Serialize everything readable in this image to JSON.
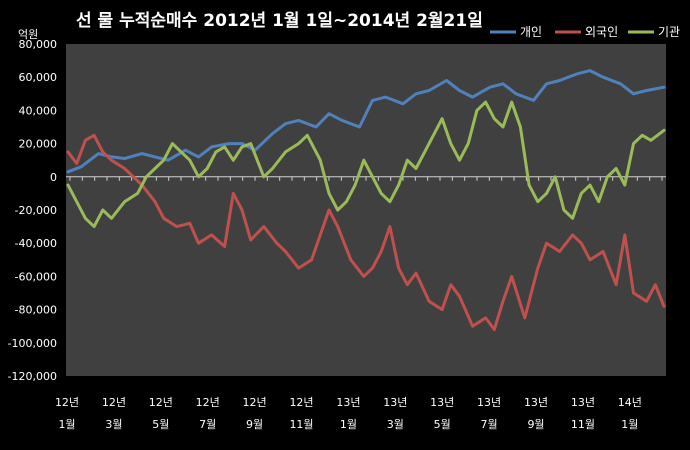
{
  "chart_data": {
    "type": "line",
    "title": "선 물 누적순매수 2012년 1월 1일~2014년 2월21일",
    "unit_label": "억원",
    "ylim": [
      -120000,
      80000
    ],
    "ytick_values": [
      80000,
      60000,
      40000,
      20000,
      0,
      -20000,
      -40000,
      -60000,
      -80000,
      -100000,
      -120000
    ],
    "ytick_labels": [
      "80,000",
      "60,000",
      "40,000",
      "20,000",
      "0",
      "-20,000",
      "-40,000",
      "-60,000",
      "-80,000",
      "-100,000",
      "-120,000"
    ],
    "x_ticks": [
      {
        "year": "12년",
        "month": "1월"
      },
      {
        "year": "12년",
        "month": "3월"
      },
      {
        "year": "12년",
        "month": "5월"
      },
      {
        "year": "12년",
        "month": "7월"
      },
      {
        "year": "12년",
        "month": "9월"
      },
      {
        "year": "12년",
        "month": "11월"
      },
      {
        "year": "13년",
        "month": "1월"
      },
      {
        "year": "13년",
        "month": "3월"
      },
      {
        "year": "13년",
        "month": "5월"
      },
      {
        "year": "13년",
        "month": "7월"
      },
      {
        "year": "13년",
        "month": "9월"
      },
      {
        "year": "13년",
        "month": "11월"
      },
      {
        "year": "14년",
        "month": "1월"
      }
    ],
    "x_domain_months": [
      0,
      13.7
    ],
    "legend_position": "top-right",
    "grid": false,
    "series": [
      {
        "name": "개인",
        "color": "#4f81bd",
        "x": [
          0,
          0.3,
          0.7,
          1.0,
          1.3,
          1.7,
          2.0,
          2.3,
          2.7,
          3.0,
          3.3,
          3.7,
          4.0,
          4.3,
          4.7,
          5.0,
          5.3,
          5.7,
          6.0,
          6.3,
          6.7,
          7.0,
          7.3,
          7.7,
          8.0,
          8.3,
          8.7,
          9.0,
          9.3,
          9.7,
          10.0,
          10.3,
          10.7,
          11.0,
          11.3,
          11.7,
          12.0,
          12.3,
          12.7,
          13.0,
          13.3,
          13.7
        ],
        "y": [
          3000,
          6000,
          14000,
          12000,
          11000,
          14000,
          12000,
          10000,
          16000,
          12000,
          18000,
          20000,
          20000,
          16000,
          26000,
          32000,
          34000,
          30000,
          38000,
          34000,
          30000,
          46000,
          48000,
          44000,
          50000,
          52000,
          58000,
          52000,
          48000,
          54000,
          56000,
          50000,
          46000,
          56000,
          58000,
          62000,
          64000,
          60000,
          56000,
          50000,
          52000,
          54000
        ]
      },
      {
        "name": "외국인",
        "color": "#c0504d",
        "x": [
          0,
          0.2,
          0.4,
          0.6,
          0.8,
          1.0,
          1.3,
          1.7,
          2.0,
          2.2,
          2.5,
          2.8,
          3.0,
          3.3,
          3.6,
          3.8,
          4.0,
          4.2,
          4.5,
          4.8,
          5.0,
          5.3,
          5.6,
          5.8,
          6.0,
          6.2,
          6.5,
          6.8,
          7.0,
          7.2,
          7.4,
          7.6,
          7.8,
          8.0,
          8.3,
          8.6,
          8.8,
          9.0,
          9.3,
          9.6,
          9.8,
          10.0,
          10.2,
          10.5,
          10.8,
          11.0,
          11.3,
          11.6,
          11.8,
          12.0,
          12.3,
          12.6,
          12.8,
          13.0,
          13.3,
          13.5,
          13.7
        ],
        "y": [
          15000,
          8000,
          22000,
          25000,
          15000,
          10000,
          5000,
          -5000,
          -15000,
          -25000,
          -30000,
          -28000,
          -40000,
          -35000,
          -42000,
          -10000,
          -20000,
          -38000,
          -30000,
          -40000,
          -45000,
          -55000,
          -50000,
          -35000,
          -20000,
          -30000,
          -50000,
          -60000,
          -55000,
          -45000,
          -30000,
          -55000,
          -65000,
          -58000,
          -75000,
          -80000,
          -65000,
          -72000,
          -90000,
          -85000,
          -92000,
          -75000,
          -60000,
          -85000,
          -55000,
          -40000,
          -45000,
          -35000,
          -40000,
          -50000,
          -45000,
          -65000,
          -35000,
          -70000,
          -75000,
          -65000,
          -78000
        ]
      },
      {
        "name": "기관",
        "color": "#9bbb59",
        "x": [
          0,
          0.2,
          0.4,
          0.6,
          0.8,
          1.0,
          1.3,
          1.6,
          1.8,
          2.0,
          2.2,
          2.4,
          2.6,
          2.8,
          3.0,
          3.2,
          3.4,
          3.6,
          3.8,
          4.0,
          4.2,
          4.5,
          4.7,
          5.0,
          5.3,
          5.5,
          5.8,
          6.0,
          6.2,
          6.4,
          6.6,
          6.8,
          7.0,
          7.2,
          7.4,
          7.6,
          7.8,
          8.0,
          8.2,
          8.4,
          8.6,
          8.8,
          9.0,
          9.2,
          9.4,
          9.6,
          9.8,
          10.0,
          10.2,
          10.4,
          10.6,
          10.8,
          11.0,
          11.2,
          11.4,
          11.6,
          11.8,
          12.0,
          12.2,
          12.4,
          12.6,
          12.8,
          13.0,
          13.2,
          13.4,
          13.7
        ],
        "y": [
          -5000,
          -15000,
          -25000,
          -30000,
          -20000,
          -25000,
          -15000,
          -10000,
          0,
          5000,
          10000,
          20000,
          15000,
          10000,
          0,
          5000,
          15000,
          18000,
          10000,
          18000,
          20000,
          0,
          5000,
          15000,
          20000,
          25000,
          10000,
          -10000,
          -20000,
          -15000,
          -5000,
          10000,
          0,
          -10000,
          -15000,
          -5000,
          10000,
          5000,
          15000,
          25000,
          35000,
          20000,
          10000,
          20000,
          40000,
          45000,
          35000,
          30000,
          45000,
          30000,
          -5000,
          -15000,
          -10000,
          0,
          -20000,
          -25000,
          -10000,
          -5000,
          -15000,
          0,
          5000,
          -5000,
          20000,
          25000,
          22000,
          28000
        ]
      }
    ]
  }
}
